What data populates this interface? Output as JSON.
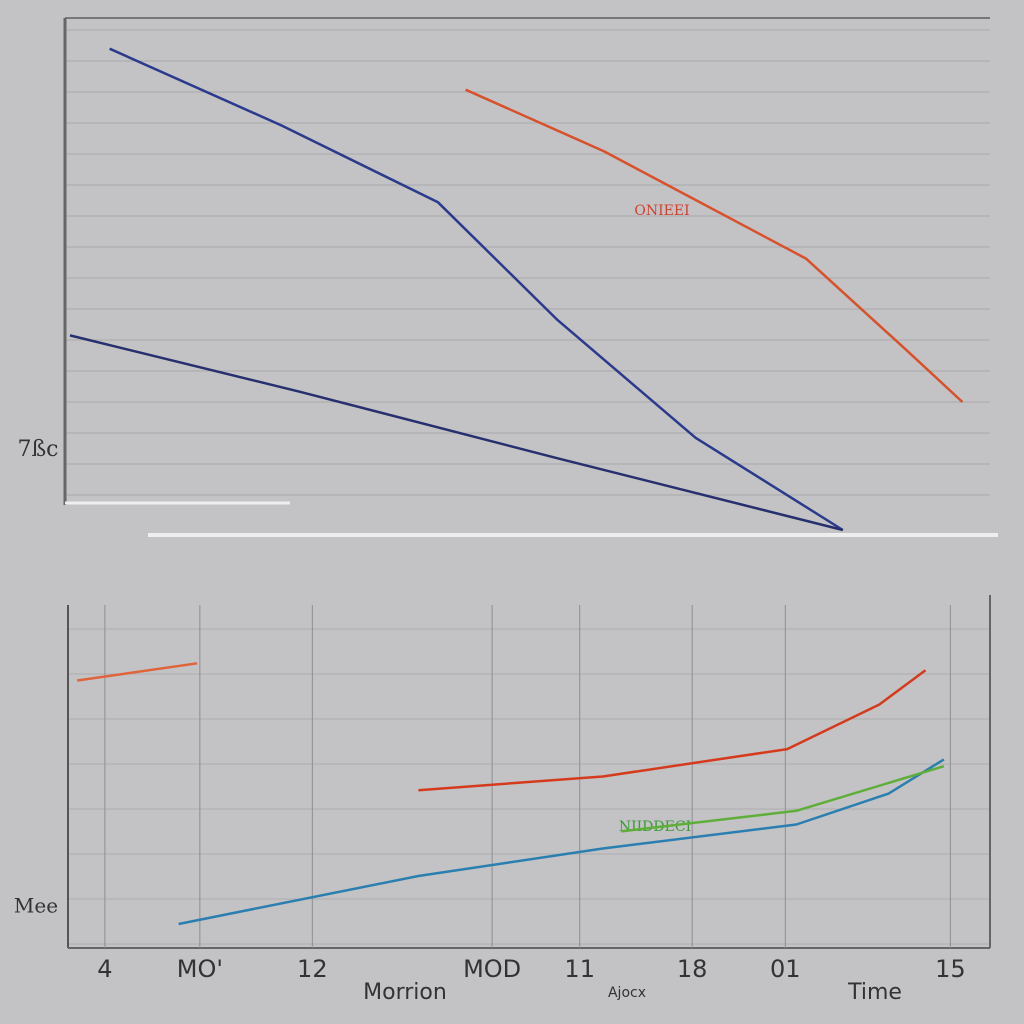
{
  "chart_data": [
    {
      "type": "line",
      "annotations": [
        "7ßc",
        "ONIEEI"
      ],
      "xlim": [
        0,
        10
      ],
      "ylim": [
        0,
        10
      ],
      "series": [
        {
          "color": "#2b3a8c",
          "x": [
            0.43,
            2.3,
            4.0,
            5.3,
            6.8,
            8.4
          ],
          "values": [
            9.4,
            7.9,
            6.4,
            4.1,
            1.8,
            0
          ]
        },
        {
          "color": "#d8502c",
          "x": [
            4.3,
            5.8,
            8.0,
            9.1,
            9.7
          ],
          "values": [
            8.6,
            7.4,
            5.3,
            3.5,
            2.5
          ]
        },
        {
          "color": "#27306e",
          "x": [
            0,
            2.5,
            5.3,
            8.4
          ],
          "values": [
            3.8,
            2.7,
            1.4,
            0
          ]
        }
      ]
    },
    {
      "type": "line",
      "annotations": [
        "Mee",
        "NIIDDECI"
      ],
      "x_labels": [
        "Morrion",
        "Ajocx",
        "Time"
      ],
      "xlim": [
        0,
        10
      ],
      "ylim": [
        0,
        10
      ],
      "xticks": [
        {
          "value": 0.4,
          "label": "4"
        },
        {
          "value": 1.43,
          "label": "MO'"
        },
        {
          "value": 2.65,
          "label": "12"
        },
        {
          "value": 4.6,
          "label": "MOD"
        },
        {
          "value": 5.55,
          "label": "11"
        },
        {
          "value": 6.77,
          "label": "18"
        },
        {
          "value": 7.78,
          "label": "01"
        },
        {
          "value": 9.57,
          "label": "15"
        }
      ],
      "series": [
        {
          "color": "#d63a1c",
          "x": [
            3.8,
            5.8,
            7.8,
            8.8,
            9.3
          ],
          "values": [
            4.6,
            5.0,
            5.8,
            7.1,
            8.1
          ]
        },
        {
          "color": "#2a7fb0",
          "x": [
            1.2,
            3.8,
            5.8,
            7.9,
            8.9,
            9.5
          ],
          "values": [
            0.7,
            2.1,
            2.9,
            3.6,
            4.5,
            5.5
          ]
        },
        {
          "color": "#5fae3a",
          "x": [
            6.0,
            7.9,
            9.5
          ],
          "values": [
            3.4,
            4.0,
            5.3
          ]
        },
        {
          "color": "#e0633a",
          "x": [
            0.1,
            1.4
          ],
          "values": [
            7.8,
            8.3
          ]
        }
      ]
    }
  ]
}
